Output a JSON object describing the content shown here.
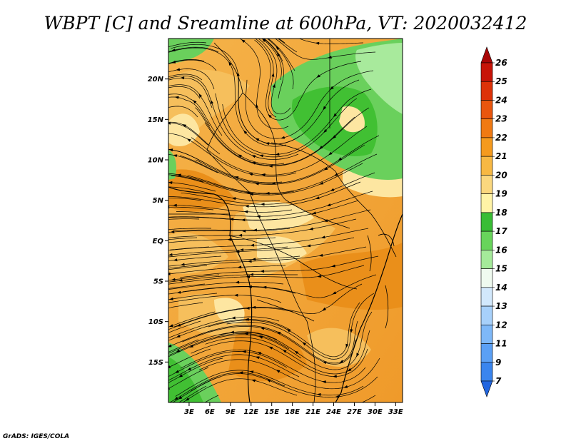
{
  "title": "WBPT [C] and Sreamline at 600hPa, VT: 2020032412",
  "credit": "GrADS: IGES/COLA",
  "map": {
    "lon_range": [
      0,
      34
    ],
    "lat_range": [
      -20,
      25
    ],
    "lon_ticks": [
      "3E",
      "6E",
      "9E",
      "12E",
      "15E",
      "18E",
      "21E",
      "24E",
      "27E",
      "30E",
      "33E"
    ],
    "lat_ticks": [
      "20N",
      "15N",
      "10N",
      "5N",
      "EQ",
      "5S",
      "10S",
      "15S"
    ]
  },
  "colorbar": {
    "labels": [
      "7",
      "9",
      "11",
      "12",
      "13",
      "14",
      "15",
      "16",
      "17",
      "18",
      "19",
      "20",
      "21",
      "22",
      "23",
      "24",
      "25",
      "26"
    ],
    "colors": [
      "#2166e0",
      "#3a85ee",
      "#5ba0f5",
      "#7eb8f8",
      "#a7d0fa",
      "#d2e8fc",
      "#effaef",
      "#a5ea9a",
      "#68d45b",
      "#39bd35",
      "#fff3a6",
      "#fad77e",
      "#f7b843",
      "#f59a1e",
      "#f07a13",
      "#e9560e",
      "#dd3209",
      "#c71408",
      "#a90606"
    ]
  },
  "field_colors": {
    "orange_dark": "#ea8f1a",
    "orange": "#f2a33a",
    "orange_light": "#f6bf5c",
    "yellow_light": "#fde6a1",
    "green_dark": "#41c033",
    "green": "#6ad05c",
    "green_light": "#a8ea9c"
  }
}
